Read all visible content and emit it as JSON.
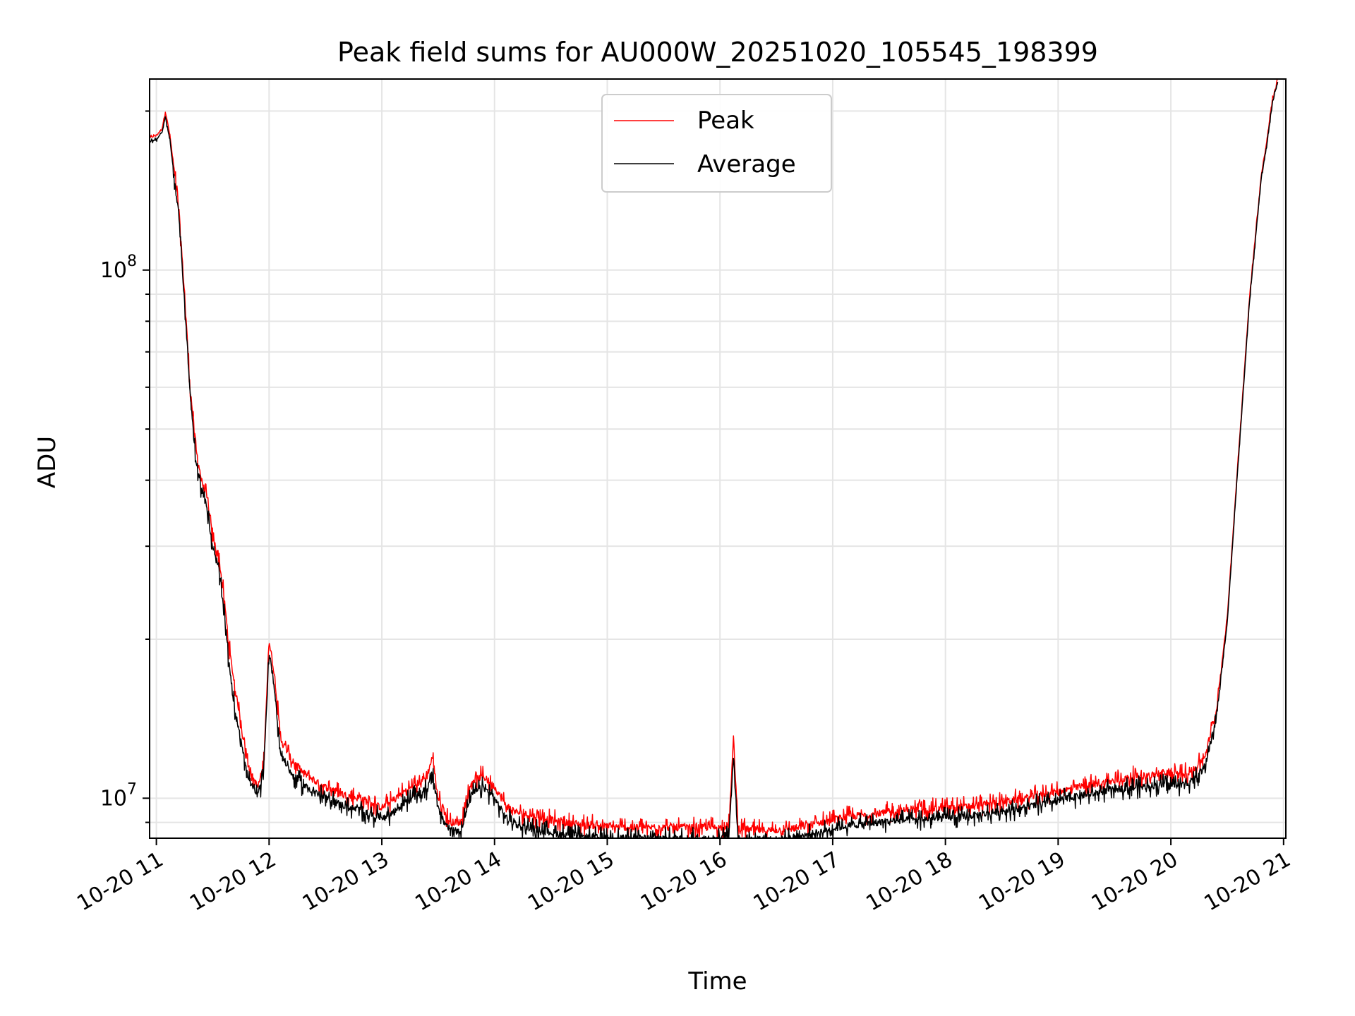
{
  "chart_data": {
    "type": "line",
    "title": "Peak field sums for AU000W_20251020_105545_198399",
    "xlabel": "Time",
    "ylabel": "ADU",
    "yscale": "log",
    "ylim": [
      8400000,
      230000000
    ],
    "xlim": [
      10.94,
      21.02
    ],
    "grid": true,
    "legend_position": "top-center",
    "x_tick_values": [
      11,
      12,
      13,
      14,
      15,
      16,
      17,
      18,
      19,
      20,
      21
    ],
    "x_tick_labels": [
      "10-20 11",
      "10-20 12",
      "10-20 13",
      "10-20 14",
      "10-20 15",
      "10-20 16",
      "10-20 17",
      "10-20 18",
      "10-20 19",
      "10-20 20",
      "10-20 21"
    ],
    "y_major_ticks": [
      {
        "value": 10000000,
        "base": "10",
        "exponent": "7"
      },
      {
        "value": 100000000,
        "base": "10",
        "exponent": "8"
      }
    ],
    "x_hours": [
      10.94,
      11.0,
      11.05,
      11.08,
      11.12,
      11.2,
      11.25,
      11.3,
      11.35,
      11.4,
      11.45,
      11.5,
      11.55,
      11.6,
      11.65,
      11.7,
      11.75,
      11.8,
      11.85,
      11.9,
      11.95,
      12.0,
      12.05,
      12.1,
      12.2,
      12.3,
      12.4,
      12.5,
      12.6,
      12.7,
      12.8,
      12.9,
      13.0,
      13.1,
      13.2,
      13.3,
      13.4,
      13.45,
      13.5,
      13.6,
      13.7,
      13.8,
      13.9,
      14.0,
      14.1,
      14.2,
      14.4,
      14.6,
      14.8,
      15.0,
      15.2,
      15.4,
      15.6,
      15.8,
      16.0,
      16.08,
      16.12,
      16.16,
      16.3,
      16.5,
      16.7,
      16.9,
      17.1,
      17.3,
      17.5,
      17.7,
      17.9,
      18.1,
      18.3,
      18.5,
      18.7,
      18.9,
      19.1,
      19.3,
      19.5,
      19.7,
      19.9,
      20.1,
      20.2,
      20.3,
      20.4,
      20.5,
      20.6,
      20.7,
      20.8,
      20.85,
      20.9,
      20.95
    ],
    "series": [
      {
        "name": "Peak",
        "color": "#ff0000",
        "values": [
          178000000,
          180000000,
          185000000,
          200000000,
          180000000,
          130000000,
          90000000,
          60000000,
          46000000,
          40000000,
          37000000,
          31000000,
          29000000,
          24000000,
          19000000,
          16000000,
          14000000,
          12000000,
          11000000,
          10500000,
          11500000,
          20000000,
          17000000,
          13000000,
          11800000,
          11200000,
          10800000,
          10500000,
          10300000,
          10100000,
          10000000,
          9800000,
          9600000,
          9900000,
          10300000,
          10600000,
          11000000,
          12000000,
          10000000,
          9000000,
          9000000,
          10800000,
          11000000,
          10500000,
          9700000,
          9400000,
          9200000,
          9000000,
          8900000,
          8850000,
          8800000,
          8800000,
          8800000,
          8800000,
          8800000,
          8900000,
          13000000,
          8800000,
          8700000,
          8700000,
          8800000,
          9000000,
          9200000,
          9300000,
          9400000,
          9500000,
          9550000,
          9600000,
          9700000,
          9850000,
          10000000,
          10200000,
          10400000,
          10600000,
          10800000,
          11000000,
          11100000,
          11100000,
          11300000,
          12000000,
          14500000,
          22000000,
          45000000,
          90000000,
          150000000,
          175000000,
          210000000,
          230000000
        ]
      },
      {
        "name": "Average",
        "color": "#000000",
        "values": [
          175000000,
          177000000,
          182000000,
          195000000,
          176000000,
          126000000,
          87000000,
          58000000,
          44000000,
          38500000,
          35500000,
          29500000,
          27500000,
          22500000,
          17500000,
          14500000,
          13000000,
          11200000,
          10500000,
          10100000,
          11000000,
          19000000,
          16000000,
          12200000,
          11100000,
          10600000,
          10300000,
          10000000,
          9800000,
          9600000,
          9500000,
          9300000,
          9200000,
          9400000,
          9800000,
          10100000,
          10400000,
          11200000,
          9500000,
          8700000,
          8700000,
          10200000,
          10500000,
          10000000,
          9200000,
          8900000,
          8700000,
          8550000,
          8450000,
          8400000,
          8400000,
          8400000,
          8400000,
          8400000,
          8400000,
          8500000,
          12200000,
          8400000,
          8350000,
          8350000,
          8450000,
          8650000,
          8850000,
          8950000,
          9050000,
          9100000,
          9150000,
          9200000,
          9300000,
          9450000,
          9600000,
          9800000,
          10000000,
          10200000,
          10400000,
          10500000,
          10600000,
          10600000,
          10800000,
          11500000,
          14000000,
          21500000,
          44000000,
          88000000,
          148000000,
          172000000,
          207000000,
          228000000
        ]
      }
    ]
  }
}
